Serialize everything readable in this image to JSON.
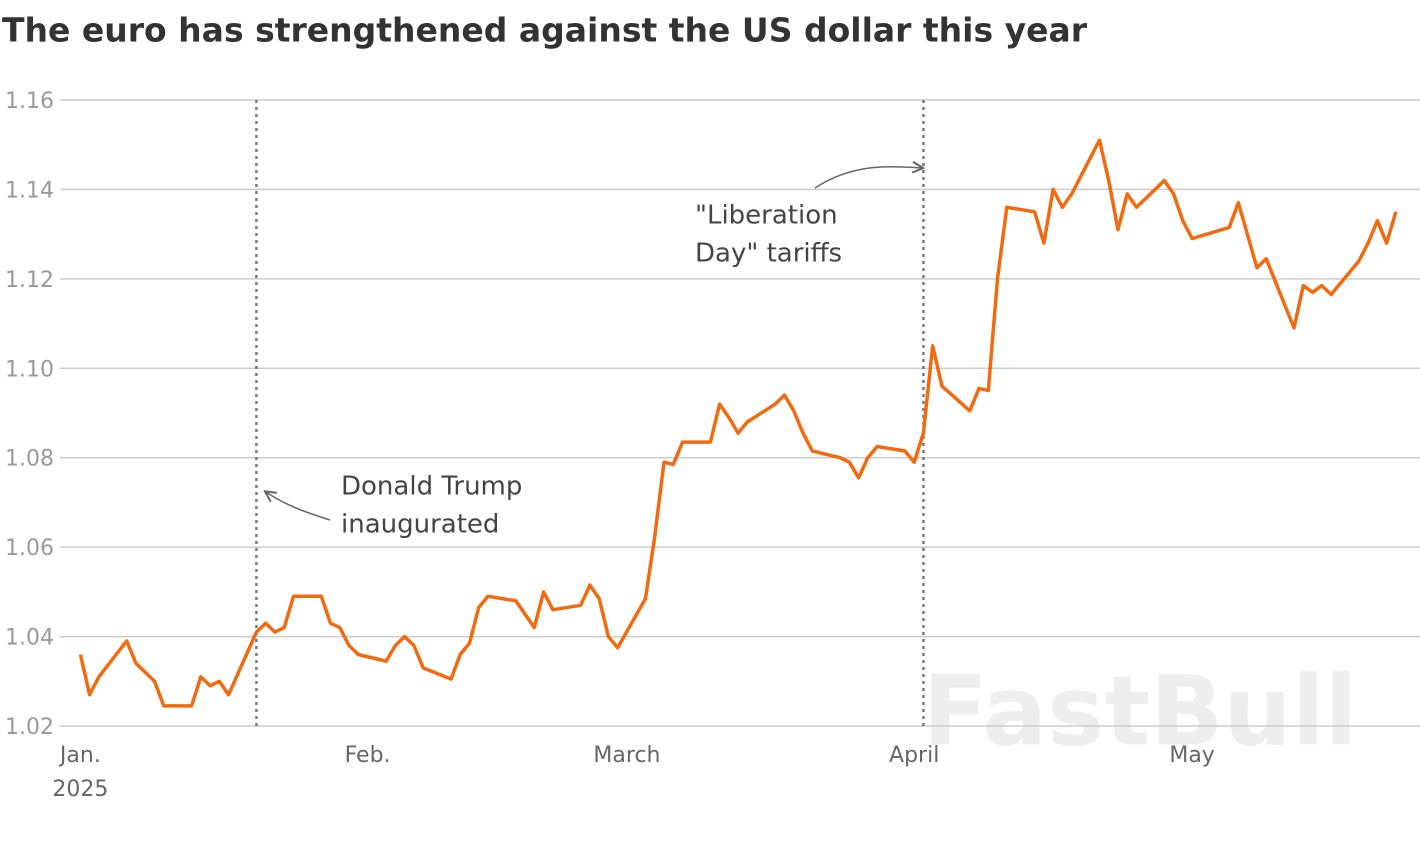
{
  "chart_data": {
    "type": "line",
    "title": "The euro has strengthened against the US dollar this year",
    "year_label": "2025",
    "watermark": "FastBull",
    "color": "#f26a10",
    "x": [
      1,
      2,
      3,
      6,
      7,
      9,
      10,
      13,
      14,
      15,
      16,
      17,
      20,
      21,
      22,
      23,
      24,
      27,
      28,
      29,
      30,
      31,
      34,
      35,
      36,
      37,
      38,
      41,
      42,
      43,
      44,
      45,
      48,
      49,
      50,
      51,
      52,
      55,
      56,
      57,
      58,
      59,
      62,
      63,
      64,
      65,
      66,
      69,
      70,
      71,
      72,
      73,
      76,
      77,
      78,
      79,
      80,
      83,
      84,
      85,
      86,
      87,
      90,
      91,
      92,
      93,
      94,
      97,
      98,
      99,
      100,
      101,
      104,
      105,
      106,
      107,
      108,
      111,
      112,
      113,
      114,
      115,
      118,
      119,
      120,
      121,
      125,
      126,
      128,
      129,
      132,
      133,
      134,
      135,
      136,
      139,
      140,
      141,
      142,
      143
    ],
    "values": [
      1.036,
      1.027,
      1.031,
      1.039,
      1.034,
      1.03,
      1.0245,
      1.0245,
      1.031,
      1.029,
      1.03,
      1.027,
      1.041,
      1.043,
      1.041,
      1.042,
      1.049,
      1.049,
      1.043,
      1.042,
      1.038,
      1.036,
      1.0345,
      1.038,
      1.04,
      1.038,
      1.033,
      1.0305,
      1.036,
      1.0385,
      1.0465,
      1.049,
      1.048,
      1.045,
      1.042,
      1.05,
      1.046,
      1.047,
      1.0515,
      1.0485,
      1.04,
      1.0375,
      1.0485,
      1.0625,
      1.079,
      1.0785,
      1.0835,
      1.0835,
      1.092,
      1.089,
      1.0855,
      1.088,
      1.092,
      1.094,
      1.0905,
      1.0855,
      1.0815,
      1.08,
      1.079,
      1.0755,
      1.08,
      1.0825,
      1.0815,
      1.079,
      1.0855,
      1.105,
      1.096,
      1.0905,
      1.0955,
      1.095,
      1.12,
      1.136,
      1.135,
      1.128,
      1.14,
      1.136,
      1.139,
      1.151,
      1.142,
      1.131,
      1.139,
      1.136,
      1.142,
      1.139,
      1.133,
      1.129,
      1.1315,
      1.137,
      1.1225,
      1.1245,
      1.109,
      1.1185,
      1.117,
      1.1185,
      1.1165,
      1.124,
      1.128,
      1.133,
      1.128,
      1.135
    ],
    "xlim": [
      -1.2,
      145.6
    ],
    "xticks": [
      {
        "value": 1,
        "label": "Jan."
      },
      {
        "value": 32,
        "label": "Feb."
      },
      {
        "value": 60,
        "label": "March"
      },
      {
        "value": 91,
        "label": "April"
      },
      {
        "value": 121,
        "label": "May"
      }
    ],
    "ylim": [
      1.02,
      1.16
    ],
    "yticks": [
      1.02,
      1.04,
      1.06,
      1.08,
      {
        "value": 1.1,
        "label": "1.10"
      },
      1.12,
      1.14,
      1.16
    ],
    "grid": true,
    "annotations": [
      {
        "x": 20,
        "text": [
          "Donald Trump",
          "inaugurated"
        ]
      },
      {
        "x": 92,
        "text": [
          "\"Liberation",
          "Day\" tariffs"
        ]
      }
    ]
  }
}
